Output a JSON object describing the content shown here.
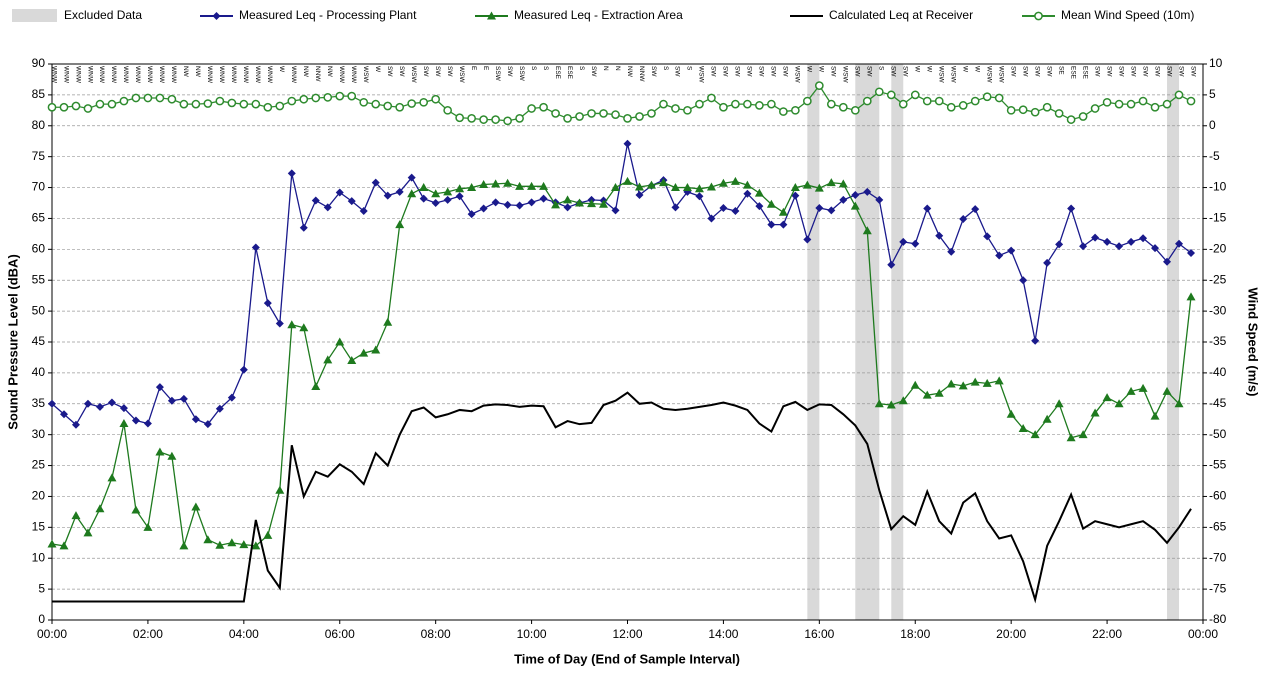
{
  "chart_data": {
    "type": "line",
    "xlabel": "Time of Day (End of Sample Interval)",
    "ylabel": "Sound Pressure Level (dBA)",
    "y2label": "Wind Speed (m/s)",
    "xlim": [
      0,
      1440
    ],
    "xticks": [
      {
        "value": 0,
        "label": "00:00"
      },
      {
        "value": 120,
        "label": "02:00"
      },
      {
        "value": 240,
        "label": "04:00"
      },
      {
        "value": 360,
        "label": "06:00"
      },
      {
        "value": 480,
        "label": "08:00"
      },
      {
        "value": 600,
        "label": "10:00"
      },
      {
        "value": 720,
        "label": "12:00"
      },
      {
        "value": 840,
        "label": "14:00"
      },
      {
        "value": 960,
        "label": "16:00"
      },
      {
        "value": 1080,
        "label": "18:00"
      },
      {
        "value": 1200,
        "label": "20:00"
      },
      {
        "value": 1320,
        "label": "22:00"
      },
      {
        "value": 1440,
        "label": "00:00"
      }
    ],
    "ylim": [
      0,
      90
    ],
    "yticks": [
      0,
      5,
      10,
      15,
      20,
      25,
      30,
      35,
      40,
      45,
      50,
      55,
      60,
      65,
      70,
      75,
      80,
      85,
      90
    ],
    "y2lim": [
      -80,
      10
    ],
    "y2ticks": [
      -80,
      -75,
      -70,
      -65,
      -60,
      -55,
      -50,
      -45,
      -40,
      -35,
      -30,
      -25,
      -20,
      -15,
      -10,
      -5,
      0,
      5,
      10
    ],
    "grid": true,
    "excluded": {
      "name": "Excluded Data",
      "color": "#d9d9d9",
      "ranges": [
        [
          945,
          960
        ],
        [
          1005,
          1035
        ],
        [
          1050,
          1065
        ],
        [
          1395,
          1410
        ]
      ]
    },
    "x": [
      0,
      15,
      30,
      45,
      60,
      75,
      90,
      105,
      120,
      135,
      150,
      165,
      180,
      195,
      210,
      225,
      240,
      255,
      270,
      285,
      300,
      315,
      330,
      345,
      360,
      375,
      390,
      405,
      420,
      435,
      450,
      465,
      480,
      495,
      510,
      525,
      540,
      555,
      570,
      585,
      600,
      615,
      630,
      645,
      660,
      675,
      690,
      705,
      720,
      735,
      750,
      765,
      780,
      795,
      810,
      825,
      840,
      855,
      870,
      885,
      900,
      915,
      930,
      945,
      960,
      975,
      990,
      1005,
      1020,
      1035,
      1050,
      1065,
      1080,
      1095,
      1110,
      1125,
      1140,
      1155,
      1170,
      1185,
      1200,
      1215,
      1230,
      1245,
      1260,
      1275,
      1290,
      1305,
      1320,
      1335,
      1350,
      1365,
      1380,
      1395,
      1410,
      1425
    ],
    "series": [
      {
        "name": "Measured Leq - Processing Plant",
        "color": "#1a1a8c",
        "marker": "diamond",
        "values": [
          35,
          33.3,
          31.6,
          35,
          34.5,
          35.2,
          34.3,
          32.3,
          31.8,
          37.7,
          35.5,
          35.8,
          32.5,
          31.7,
          34.2,
          36,
          40.5,
          60.3,
          51.3,
          48,
          72.3,
          63.5,
          67.9,
          66.8,
          69.2,
          67.8,
          66.2,
          70.8,
          68.7,
          69.3,
          71.6,
          68.2,
          67.5,
          68,
          68.6,
          65.7,
          66.6,
          67.6,
          67.2,
          67.1,
          67.6,
          68.2,
          67.6,
          66.8,
          67.5,
          68,
          67.9,
          66.3,
          77.1,
          68.8,
          70.3,
          71.2,
          66.8,
          69.3,
          68.6,
          65,
          66.7,
          66.2,
          69,
          67,
          64,
          64,
          68.7,
          61.6,
          66.7,
          66.3,
          68,
          68.8,
          69.3,
          68,
          57.5,
          61.2,
          60.9,
          66.6,
          62.2,
          59.6,
          64.9,
          66.5,
          62.1,
          59,
          59.8,
          55,
          45.2,
          57.8,
          60.8,
          66.6,
          60.5,
          61.9,
          61.2,
          60.5,
          61.2,
          61.8,
          60.2,
          58,
          60.9,
          59.4
        ]
      },
      {
        "name": "Measured Leq - Extraction Area",
        "color": "#1e7a1e",
        "marker": "triangle",
        "values": [
          12.3,
          12,
          16.9,
          14.1,
          18,
          23,
          31.8,
          17.8,
          15,
          27.2,
          26.5,
          12,
          18.3,
          13,
          12.1,
          12.5,
          12.2,
          12,
          13.7,
          21,
          47.8,
          47.3,
          37.8,
          42.1,
          45,
          42,
          43.2,
          43.7,
          48.2,
          64,
          69,
          70,
          69,
          69.3,
          69.8,
          70,
          70.5,
          70.6,
          70.7,
          70.2,
          70.2,
          70.2,
          67.2,
          68,
          67.5,
          67.4,
          67.3,
          70,
          71,
          70.1,
          70.4,
          70.8,
          70,
          70,
          69.8,
          70.1,
          70.7,
          71,
          70.4,
          69.1,
          67.3,
          66,
          70,
          70.4,
          69.9,
          70.8,
          70.6,
          67,
          63,
          35,
          34.8,
          35.5,
          38,
          36.4,
          36.7,
          38.2,
          37.9,
          38.5,
          38.3,
          38.7,
          33.3,
          31,
          30,
          32.5,
          35,
          29.5,
          30,
          33.5,
          36,
          35,
          37,
          37.5,
          33,
          37,
          35,
          52.3
        ]
      },
      {
        "name": "Calculated Leq at Receiver",
        "color": "#000000",
        "marker": "none",
        "values": [
          3,
          3,
          3,
          3,
          3,
          3,
          3,
          3,
          3,
          3,
          3,
          3,
          3,
          3,
          3,
          3,
          3,
          16.2,
          8,
          5.2,
          28.3,
          20,
          24,
          23.2,
          25.2,
          24,
          22,
          27,
          25,
          30,
          33.8,
          34.4,
          32.8,
          33.3,
          34,
          33.8,
          34.7,
          34.9,
          34.8,
          34.5,
          34.7,
          34.6,
          31.2,
          32.2,
          31.7,
          31.9,
          34.8,
          35.5,
          36.8,
          35,
          35.2,
          34.2,
          34,
          34.2,
          34.5,
          34.8,
          35.2,
          34.7,
          34,
          31.8,
          30.5,
          34.6,
          35.3,
          34,
          34.9,
          34.8,
          33.3,
          31.5,
          28.5,
          21,
          14.7,
          16.8,
          15.4,
          20.8,
          16,
          14,
          19,
          20.5,
          16,
          13.2,
          13.7,
          9.5,
          3.3,
          12,
          16,
          20.3,
          14.8,
          16,
          15.5,
          15,
          15.5,
          16,
          14.6,
          12.5,
          15,
          18
        ]
      },
      {
        "name": "Mean Wind Speed (10m)",
        "color": "#2e8b2e",
        "marker": "circle",
        "axis": "y2",
        "values": [
          3,
          3,
          3.2,
          2.8,
          3.5,
          3.5,
          4,
          4.5,
          4.5,
          4.5,
          4.3,
          3.5,
          3.5,
          3.6,
          4,
          3.7,
          3.5,
          3.5,
          3,
          3.2,
          4,
          4.3,
          4.5,
          4.6,
          4.8,
          4.8,
          3.8,
          3.5,
          3.2,
          3,
          3.6,
          3.8,
          4.3,
          2.5,
          1.3,
          1.2,
          1,
          1,
          0.8,
          1.2,
          2.8,
          3,
          2,
          1.2,
          1.5,
          2,
          2,
          1.8,
          1.2,
          1.5,
          2,
          3.5,
          2.8,
          2.5,
          3.5,
          4.5,
          3,
          3.5,
          3.5,
          3.3,
          3.5,
          2.3,
          2.5,
          4,
          6.5,
          3.5,
          3,
          2.5,
          4,
          5.5,
          5,
          3.5,
          5,
          4,
          4,
          3,
          3.3,
          4,
          4.7,
          4.5,
          2.5,
          2.6,
          2.2,
          3,
          2,
          1,
          1.5,
          2.8,
          3.8,
          3.5,
          3.5,
          4,
          3,
          3.5,
          5,
          4
        ]
      }
    ],
    "wind_directions": [
      "WNW",
      "WNW",
      "WNW",
      "WNW",
      "WNW",
      "WNW",
      "WNW",
      "WNW",
      "WNW",
      "WNW",
      "WNW",
      "NW",
      "NW",
      "WNW",
      "WNW",
      "WNW",
      "WNW",
      "WNW",
      "WNW",
      "W",
      "WNW",
      "NW",
      "NNW",
      "NW",
      "WNW",
      "WNW",
      "WSW",
      "W",
      "SW",
      "SW",
      "WSW",
      "SW",
      "SW",
      "SW",
      "WSW",
      "E",
      "E",
      "SSW",
      "SW",
      "SSW",
      "S",
      "S",
      "ESE",
      "ESE",
      "S",
      "SW",
      "N",
      "N",
      "NW",
      "NNW",
      "SW",
      "S",
      "SW",
      "S",
      "WSW",
      "SW",
      "SW",
      "SW",
      "SW",
      "SW",
      "SW",
      "SW",
      "WSW",
      "W",
      "W",
      "SW",
      "WSW",
      "SW",
      "SW",
      "S",
      "SW",
      "SW",
      "W",
      "W",
      "WSW",
      "WSW",
      "W",
      "W",
      "WSW",
      "WSW",
      "SW",
      "SW",
      "SW",
      "SW",
      "SE",
      "ESE",
      "ESE",
      "SW",
      "SW",
      "SW",
      "SW",
      "SW",
      "SW",
      "SW",
      "SW",
      "SW"
    ]
  }
}
